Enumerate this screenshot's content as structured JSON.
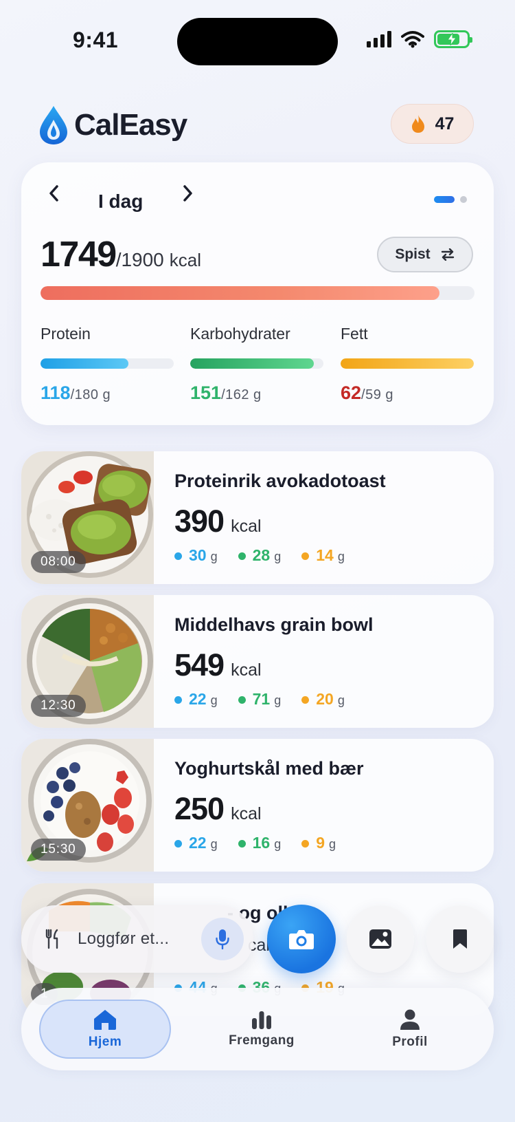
{
  "status_bar": {
    "time": "9:41"
  },
  "header": {
    "app_name": "CalEasy",
    "streak_count": "47"
  },
  "summary": {
    "day_label": "I dag",
    "calories_consumed": "1749",
    "calories_goal": "/1900",
    "calories_unit": "kcal",
    "calorie_progress": 0.92,
    "mode_button": "Spist",
    "macros": [
      {
        "label": "Protein",
        "value": "118",
        "goal": "/180 g",
        "progress": 0.66,
        "color": "#2aa6e8"
      },
      {
        "label": "Karbohydrater",
        "value": "151",
        "goal": "/162 g",
        "progress": 0.93,
        "color": "#2fb36b"
      },
      {
        "label": "Fett",
        "value": "62",
        "goal": "/59 g",
        "progress": 1.0,
        "color": "#f4a623",
        "value_color": "#c42a26"
      }
    ]
  },
  "meals": [
    {
      "time": "08:00",
      "name": "Proteinrik avokadotoast",
      "kcal": "390",
      "protein": "30",
      "carbs": "28",
      "fat": "14"
    },
    {
      "time": "12:30",
      "name": "Middelhavs grain bowl",
      "kcal": "549",
      "protein": "22",
      "carbs": "71",
      "fat": "20"
    },
    {
      "time": "15:30",
      "name": "Yoghurtskål med bær",
      "kcal": "250",
      "protein": "22",
      "carbs": "16",
      "fat": "9"
    },
    {
      "time": "1",
      "name": "- og olle",
      "kcal": "cal",
      "protein": "44",
      "carbs": "36",
      "fat": "19"
    }
  ],
  "units": {
    "kcal": "kcal",
    "gram": "g"
  },
  "action_bar": {
    "log_placeholder": "Loggfør et..."
  },
  "tabs": [
    {
      "label": "Hjem",
      "icon": "home-icon",
      "active": true
    },
    {
      "label": "Fremgang",
      "icon": "bar-chart-icon",
      "active": false
    },
    {
      "label": "Profil",
      "icon": "person-icon",
      "active": false
    }
  ],
  "colors": {
    "protein": "#2aa6e8",
    "carbs": "#2fb36b",
    "fat": "#f4a623",
    "accent": "#1a74e0"
  }
}
